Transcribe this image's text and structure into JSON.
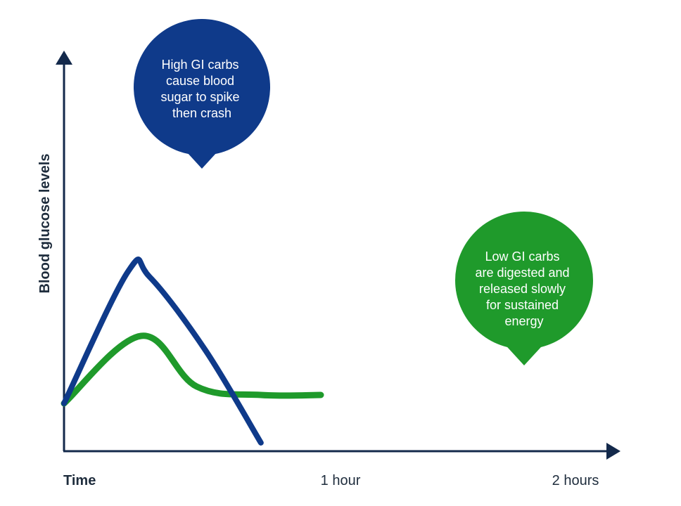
{
  "chart_data": {
    "type": "line",
    "title": "",
    "xlabel": "Time",
    "ylabel": "Blood glucose levels",
    "x_ticks": [
      {
        "x": 0,
        "label": "Time"
      },
      {
        "x": 60,
        "label": "1 hour"
      },
      {
        "x": 120,
        "label": "2 hours"
      }
    ],
    "xlim": [
      0,
      120
    ],
    "ylim": [
      0,
      100
    ],
    "grid": false,
    "series": [
      {
        "key": "high_gi",
        "color": "#0f3a8a",
        "points": [
          [
            0,
            14
          ],
          [
            15,
            61
          ],
          [
            20,
            59
          ],
          [
            33,
            33
          ],
          [
            46,
            0
          ]
        ]
      },
      {
        "key": "low_gi",
        "color": "#1f9a2b",
        "points": [
          [
            0,
            14
          ],
          [
            18,
            38
          ],
          [
            31,
            20
          ],
          [
            46,
            17
          ],
          [
            60,
            17
          ]
        ]
      }
    ],
    "annotations": [
      {
        "series": "high_gi",
        "text": [
          "High GI carbs",
          "cause blood",
          "sugar to spike",
          "then crash"
        ],
        "color": "#0f3a8a"
      },
      {
        "series": "low_gi",
        "text": [
          "Low GI carbs",
          "are digested and",
          "released slowly",
          "for sustained",
          "energy"
        ],
        "color": "#1f9a2b"
      }
    ],
    "axis_color": "#13294b"
  }
}
